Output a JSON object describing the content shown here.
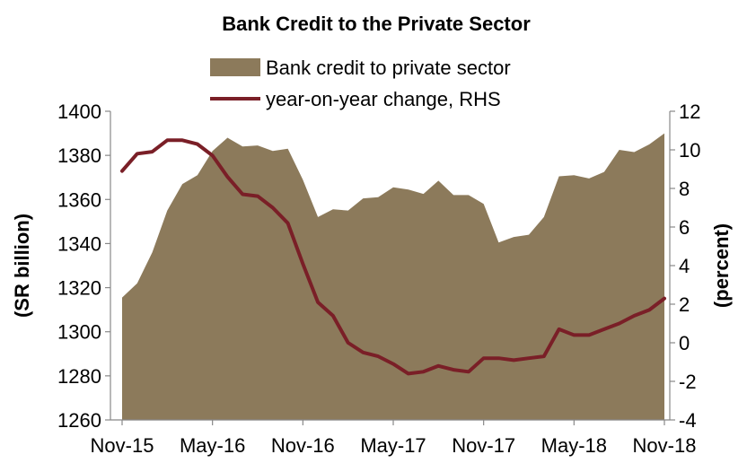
{
  "chart_data": {
    "type": "area+line",
    "title": "Bank Credit to the Private Sector",
    "ylabel_left": "(SR billion)",
    "ylabel_right": "(percent)",
    "x_tick_labels": [
      "Nov-15",
      "May-16",
      "Nov-16",
      "May-17",
      "Nov-17",
      "May-18",
      "Nov-18"
    ],
    "y_left_ticks": [
      "1260",
      "1280",
      "1300",
      "1320",
      "1340",
      "1360",
      "1380",
      "1400"
    ],
    "y_right_ticks": [
      "-4",
      "-2",
      "0",
      "2",
      "4",
      "6",
      "8",
      "10",
      "12"
    ],
    "ylim_left": [
      1260,
      1400
    ],
    "ylim_right": [
      -4,
      12
    ],
    "legend_position": "top-center",
    "colors": {
      "area": "#8c7a5b",
      "line": "#7a1f27"
    },
    "series": [
      {
        "name": "Bank credit to private sector",
        "type": "area",
        "axis": "left",
        "values": [
          1315.5,
          1322,
          1336,
          1355,
          1367,
          1371,
          1382,
          1388,
          1384,
          1384.5,
          1382,
          1383,
          1369,
          1352,
          1355.5,
          1355,
          1360.5,
          1361,
          1365.5,
          1364.5,
          1362.5,
          1368.5,
          1362,
          1362,
          1358,
          1340.5,
          1343,
          1344,
          1352,
          1370.5,
          1371,
          1369.5,
          1372.5,
          1382.5,
          1381.5,
          1385,
          1390
        ]
      },
      {
        "name": "year-on-year change, RHS",
        "type": "line",
        "axis": "right",
        "values": [
          8.9,
          9.8,
          9.9,
          10.5,
          10.5,
          10.3,
          9.7,
          8.6,
          7.7,
          7.6,
          7.0,
          6.2,
          4.1,
          2.1,
          1.4,
          0.0,
          -0.5,
          -0.7,
          -1.1,
          -1.6,
          -1.5,
          -1.2,
          -1.4,
          -1.5,
          -0.8,
          -0.8,
          -0.9,
          -0.8,
          -0.7,
          0.7,
          0.4,
          0.4,
          0.7,
          1.0,
          1.4,
          1.7,
          2.3
        ]
      }
    ]
  }
}
